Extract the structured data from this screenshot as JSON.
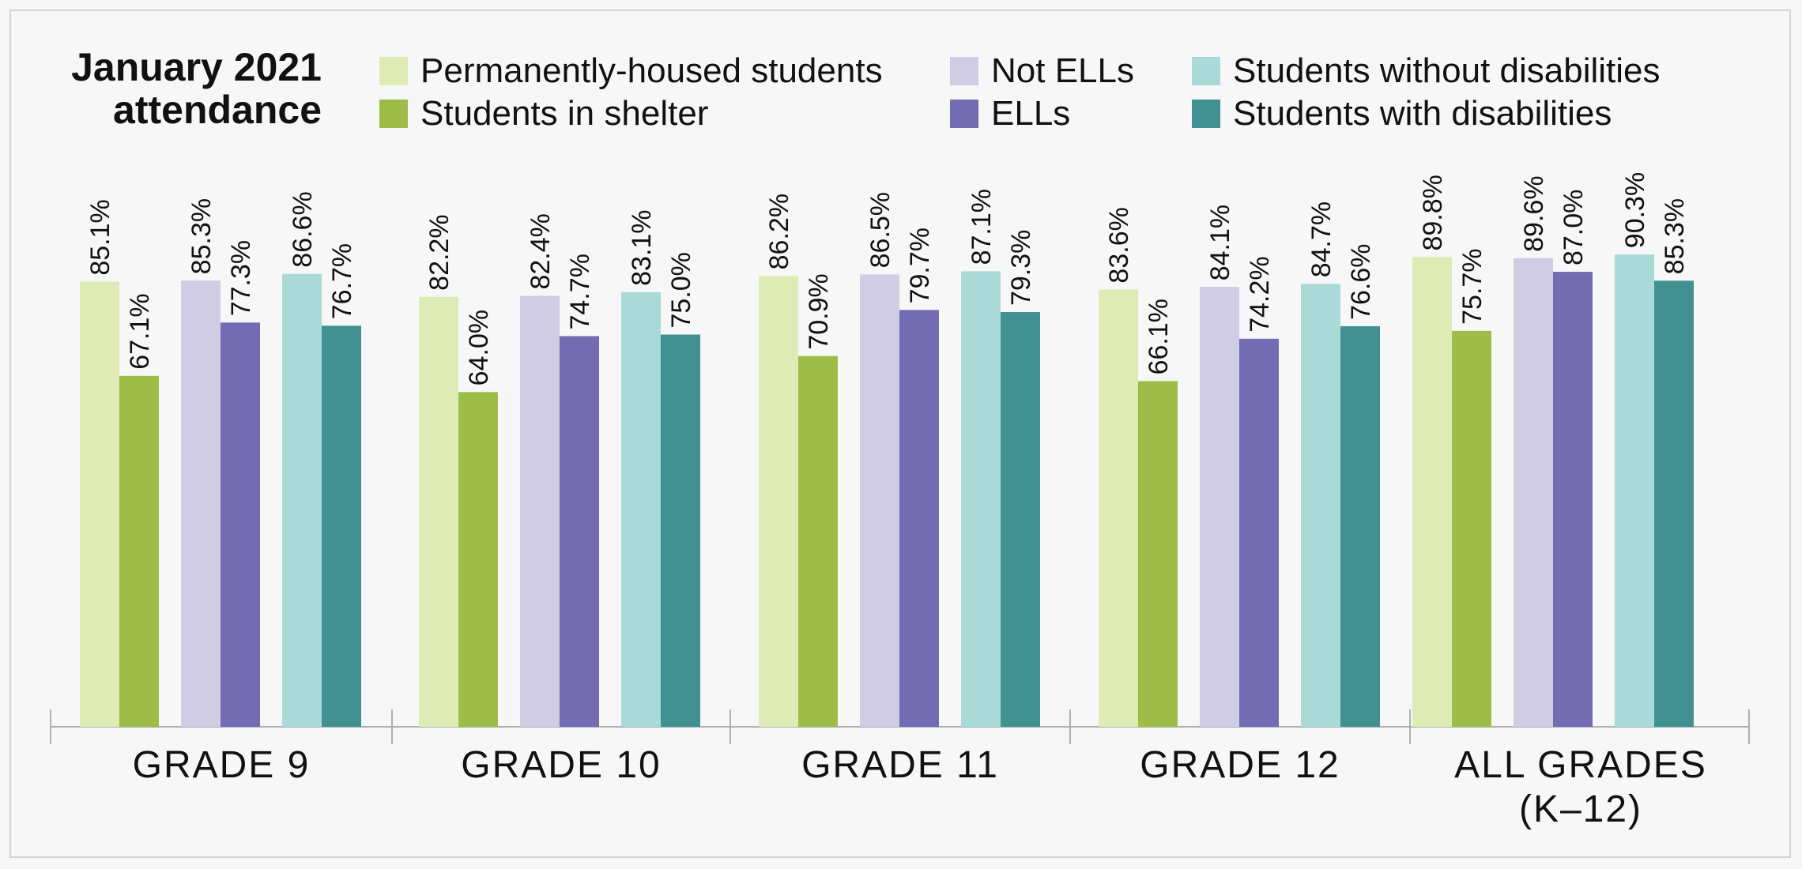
{
  "chart_data": {
    "type": "bar",
    "title": [
      "January 2021",
      "attendance"
    ],
    "categories": [
      [
        "GRADE 9"
      ],
      [
        "GRADE 10"
      ],
      [
        "GRADE 11"
      ],
      [
        "GRADE 12"
      ],
      [
        "ALL GRADES",
        "(K–12)"
      ]
    ],
    "series": [
      {
        "name": "Permanently-housed students",
        "color": "#deebb4",
        "values": [
          85.1,
          82.2,
          86.2,
          83.6,
          89.8
        ]
      },
      {
        "name": "Students in shelter",
        "color": "#9ebd47",
        "values": [
          67.1,
          64.0,
          70.9,
          66.1,
          75.7
        ]
      },
      {
        "name": "Not ELLs",
        "color": "#cfcce3",
        "values": [
          85.3,
          82.4,
          86.5,
          84.1,
          89.6
        ]
      },
      {
        "name": "ELLs",
        "color": "#736cb2",
        "values": [
          77.3,
          74.7,
          79.7,
          74.2,
          87.0
        ]
      },
      {
        "name": "Students without disabilities",
        "color": "#a9dad7",
        "values": [
          86.6,
          83.1,
          87.1,
          84.7,
          90.3
        ]
      },
      {
        "name": "Students with disabilities",
        "color": "#419193",
        "values": [
          76.7,
          75.0,
          79.3,
          76.6,
          85.3
        ]
      }
    ],
    "value_labels": [
      [
        "85.1%",
        "82.2%",
        "86.2%",
        "83.6%",
        "89.8%"
      ],
      [
        "67.1%",
        "64.0%",
        "70.9%",
        "66.1%",
        "75.7%"
      ],
      [
        "85.3%",
        "82.4%",
        "86.5%",
        "84.1%",
        "89.6%"
      ],
      [
        "77.3%",
        "74.7%",
        "79.7%",
        "74.2%",
        "87.0%"
      ],
      [
        "86.6%",
        "83.1%",
        "87.1%",
        "84.7%",
        "90.3%"
      ],
      [
        "76.7%",
        "75.0%",
        "79.3%",
        "76.6%",
        "85.3%"
      ]
    ],
    "legend_placement": "top",
    "grid": false,
    "axis_color": "#b0b0b0"
  }
}
